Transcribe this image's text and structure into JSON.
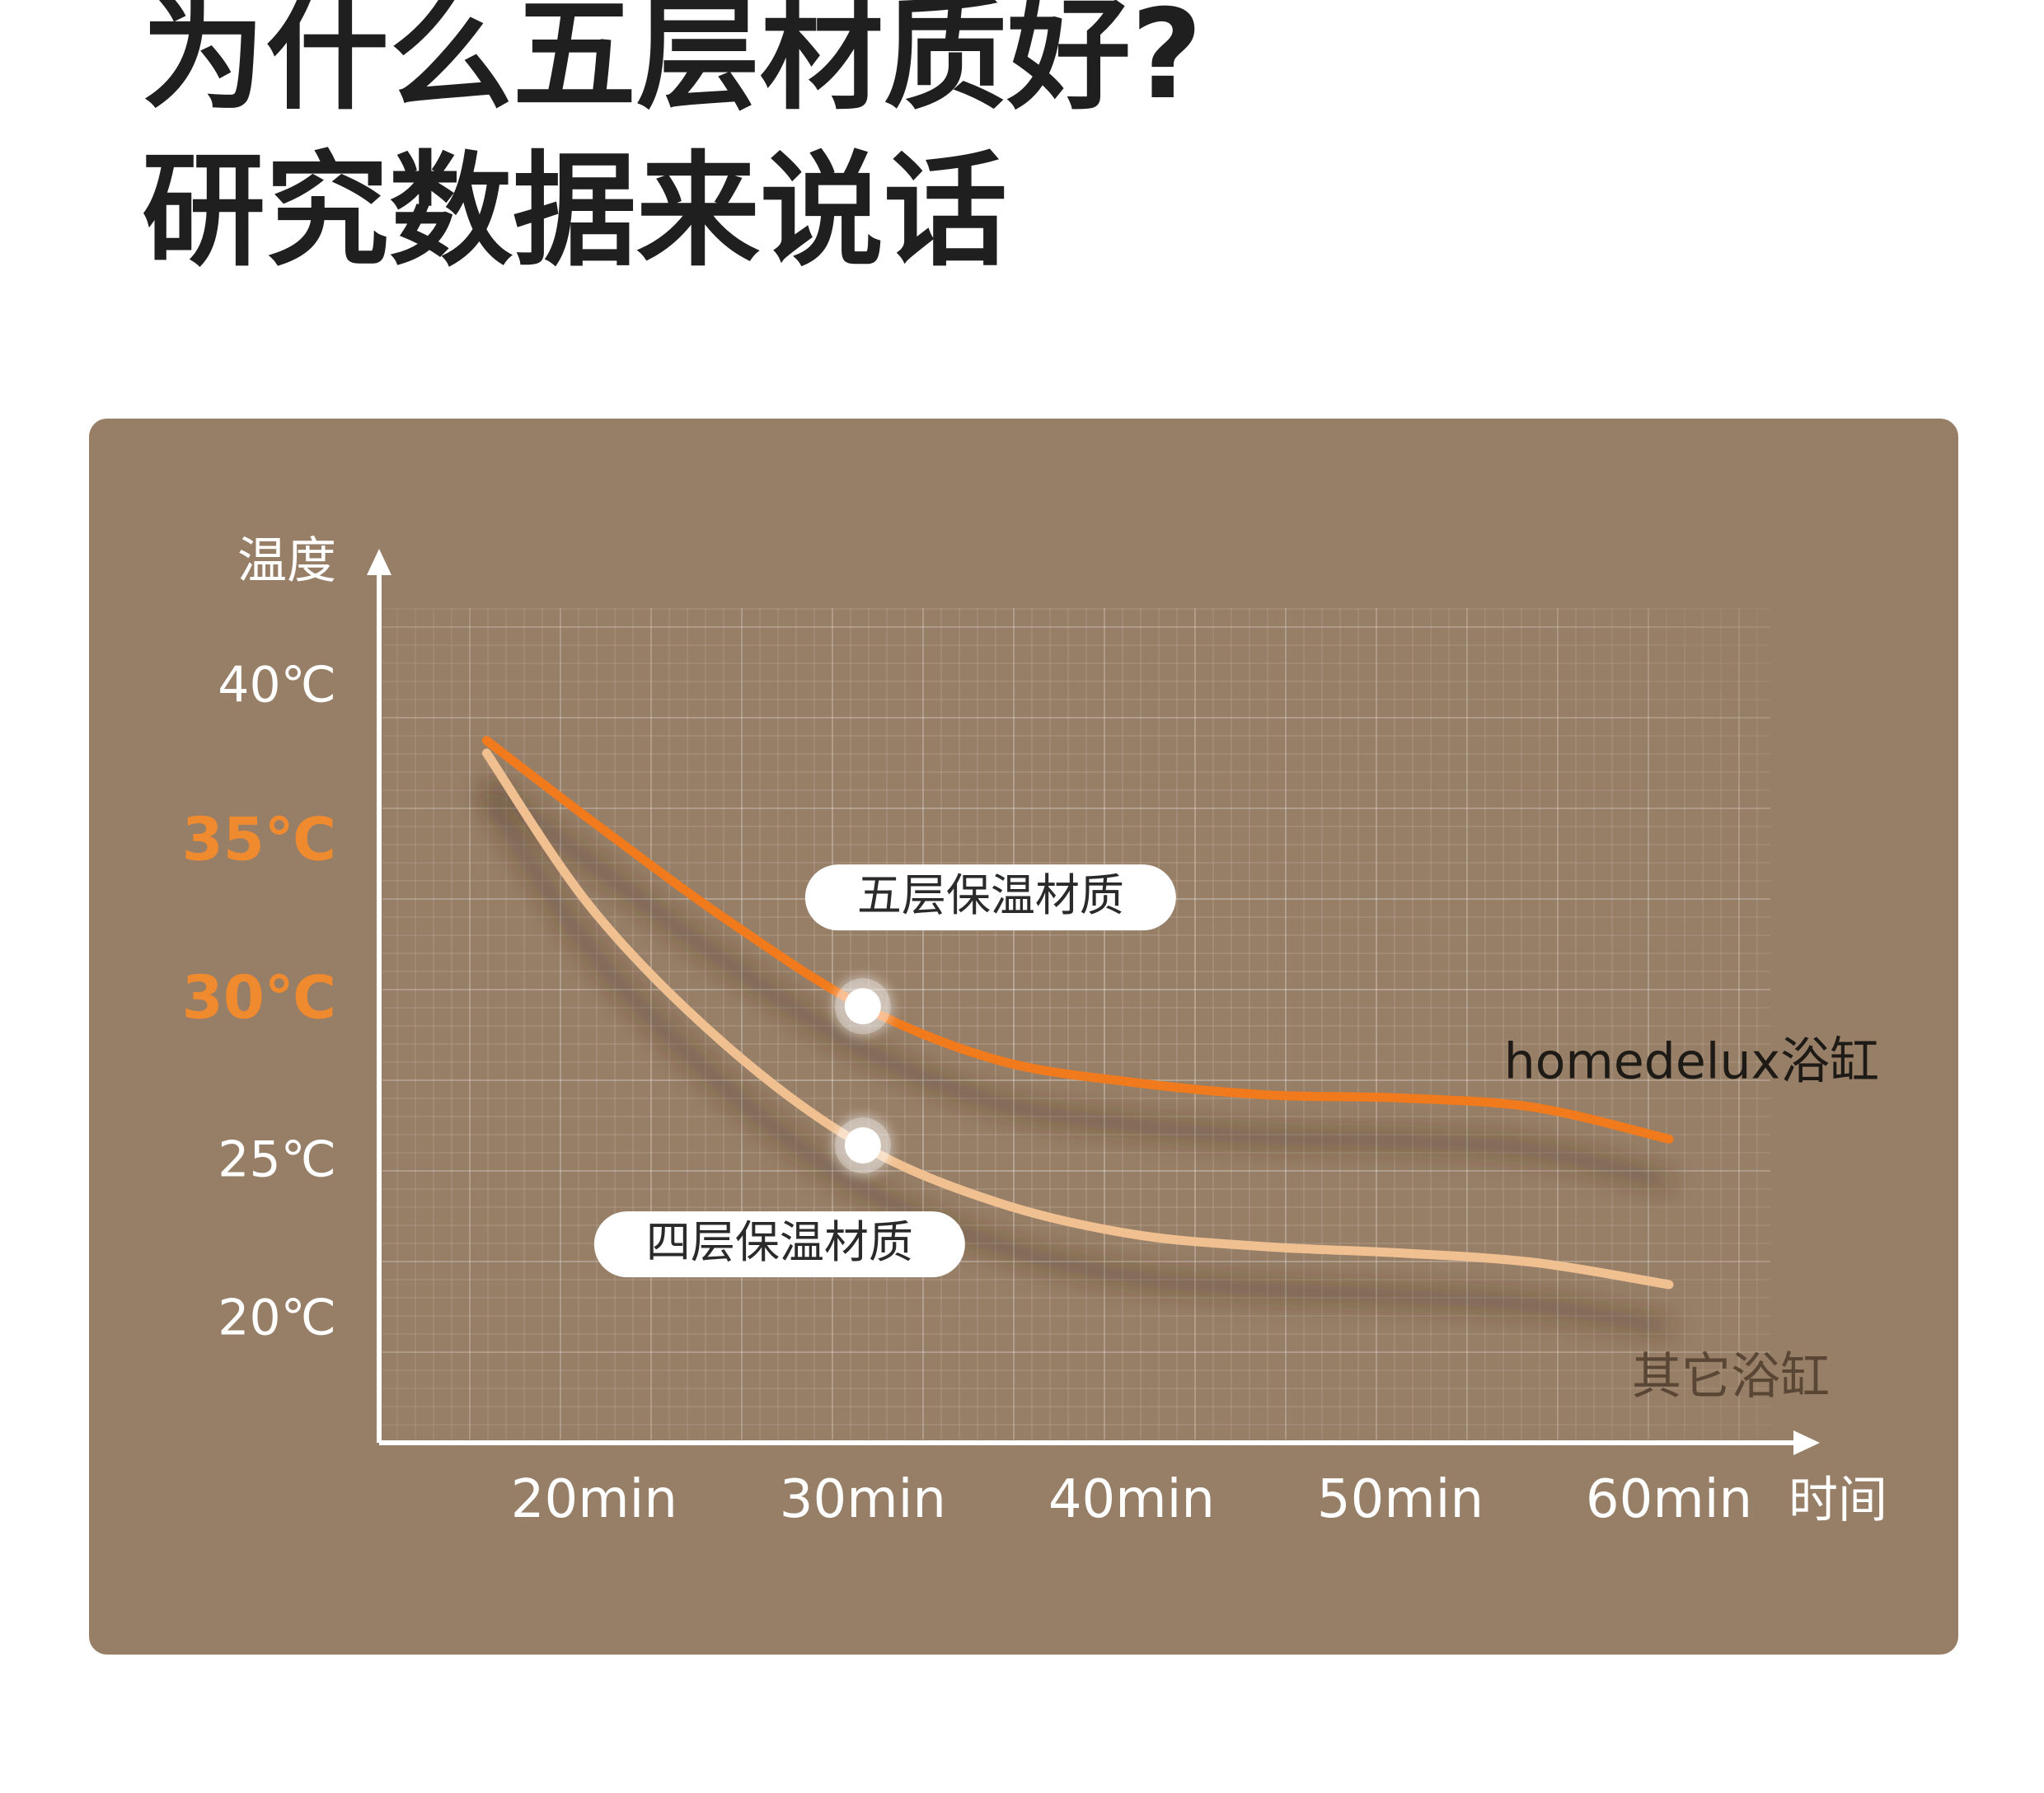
{
  "headline": {
    "line1": "为什么五层材质好?",
    "line2": "研究数据来说话"
  },
  "colors": {
    "card_bg": "#977e66",
    "five_layer_line": "#f07a1c",
    "four_layer_line": "#f0c090",
    "highlight_tick": "#f08a2e",
    "axis": "#ffffff",
    "tick_label": "#ffffff",
    "headline": "#1f1f1f"
  },
  "chart_data": {
    "type": "line",
    "xlabel": "时间",
    "ylabel": "温度",
    "x_ticks": [
      "20min",
      "30min",
      "40min",
      "50min",
      "60min"
    ],
    "y_ticks": [
      {
        "label": "40℃",
        "value": 40,
        "highlight": false
      },
      {
        "label": "35℃",
        "value": 35,
        "highlight": true
      },
      {
        "label": "30℃",
        "value": 30,
        "highlight": true
      },
      {
        "label": "25℃",
        "value": 25,
        "highlight": false
      },
      {
        "label": "20℃",
        "value": 20,
        "highlight": false
      }
    ],
    "xlim": [
      12,
      65
    ],
    "ylim": [
      16,
      44
    ],
    "grid": true,
    "series": [
      {
        "name": "homedelux浴缸",
        "annotation": "五层保温材质",
        "highlight_x": 30,
        "points": [
          [
            16,
            38.2
          ],
          [
            20,
            35.6
          ],
          [
            25,
            32.5
          ],
          [
            30,
            29.8
          ],
          [
            35,
            28.1
          ],
          [
            40,
            27.4
          ],
          [
            45,
            27.0
          ],
          [
            50,
            26.9
          ],
          [
            55,
            26.6
          ],
          [
            60,
            25.6
          ]
        ]
      },
      {
        "name": "其它浴缸",
        "annotation": "四层保温材质",
        "highlight_x": 30,
        "points": [
          [
            16,
            37.8
          ],
          [
            20,
            32.8
          ],
          [
            25,
            28.5
          ],
          [
            30,
            25.4
          ],
          [
            35,
            23.6
          ],
          [
            40,
            22.6
          ],
          [
            45,
            22.2
          ],
          [
            50,
            22.0
          ],
          [
            55,
            21.7
          ],
          [
            60,
            21.0
          ]
        ]
      }
    ]
  }
}
